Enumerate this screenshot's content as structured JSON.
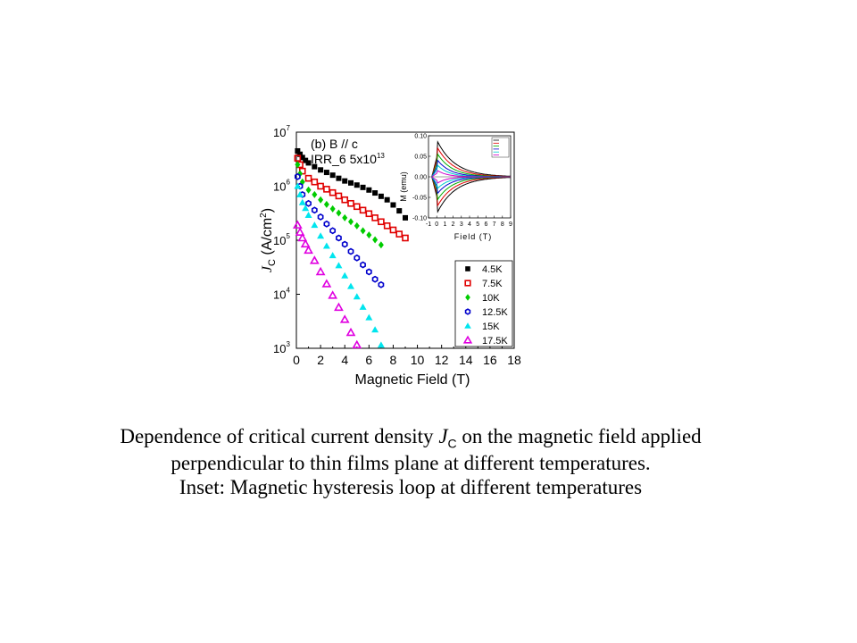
{
  "caption": {
    "line1_prefix": "Dependence of critical current density ",
    "line1_var": "J",
    "line1_var_sub": "C",
    "line1_suffix": " on the magnetic field applied",
    "line2": "perpendicular to thin films plane at different temperatures.",
    "line3": "Inset: Magnetic hysteresis loop at different temperatures"
  },
  "chart_data": [
    {
      "type": "scatter",
      "annotation_line1": "(b)  B // c",
      "annotation_line2_base": "IRR_6 5x10",
      "annotation_line2_exp": "13",
      "xlabel": "Magnetic Field (T)",
      "ylabel_var": "J",
      "ylabel_sub": "C",
      "ylabel_unit": " (A/cm",
      "ylabel_unit_exp": "2",
      "ylabel_close": ")",
      "x_ticks": [
        "0",
        "2",
        "4",
        "6",
        "8",
        "10",
        "12",
        "14",
        "16",
        "18"
      ],
      "y_tick_base": "10",
      "y_tick_exponents": [
        "3",
        "4",
        "5",
        "6",
        "7"
      ],
      "xlim": [
        0,
        18
      ],
      "ylim": [
        1000,
        10000000
      ],
      "y_scale": "log",
      "legend_position": "bottom-right",
      "series": [
        {
          "name": "4.5K",
          "marker": "square",
          "color": "#000000",
          "x": [
            0.1,
            0.3,
            0.5,
            0.75,
            1,
            1.5,
            2,
            2.5,
            3,
            3.5,
            4,
            4.5,
            5,
            5.5,
            6,
            6.5,
            7,
            7.5,
            8,
            8.5,
            9
          ],
          "y": [
            4500000,
            3900000,
            3400000,
            3000000,
            2700000,
            2300000,
            2000000,
            1800000,
            1600000,
            1400000,
            1250000,
            1150000,
            1050000,
            950000,
            850000,
            750000,
            650000,
            560000,
            450000,
            350000,
            260000
          ]
        },
        {
          "name": "7.5K",
          "marker": "square-open",
          "color": "#e00000",
          "x": [
            0.1,
            0.3,
            0.5,
            1,
            1.5,
            2,
            2.5,
            3,
            3.5,
            4,
            4.5,
            5,
            5.5,
            6,
            6.5,
            7,
            7.5,
            8,
            8.5,
            9
          ],
          "y": [
            3300000,
            2500000,
            1900000,
            1400000,
            1200000,
            1000000,
            880000,
            760000,
            660000,
            560000,
            480000,
            420000,
            360000,
            310000,
            260000,
            220000,
            185000,
            155000,
            130000,
            110000
          ]
        },
        {
          "name": "10K",
          "marker": "diamond",
          "color": "#00cc00",
          "x": [
            0.1,
            0.3,
            0.5,
            1,
            1.5,
            2,
            2.5,
            3,
            3.5,
            4,
            4.5,
            5,
            5.5,
            6,
            6.5,
            7
          ],
          "y": [
            2500000,
            1700000,
            1200000,
            850000,
            700000,
            560000,
            460000,
            380000,
            320000,
            260000,
            220000,
            185000,
            150000,
            125000,
            102000,
            82000
          ]
        },
        {
          "name": "12.5K",
          "marker": "hexagon-open",
          "color": "#0000cc",
          "x": [
            0.1,
            0.3,
            0.5,
            1,
            1.5,
            2,
            2.5,
            3,
            3.5,
            4,
            4.5,
            5,
            5.5,
            6,
            6.5,
            7
          ],
          "y": [
            1500000,
            1000000,
            700000,
            480000,
            360000,
            270000,
            200000,
            150000,
            110000,
            84000,
            62000,
            47000,
            35000,
            26000,
            19000,
            15000
          ]
        },
        {
          "name": "15K",
          "marker": "triangle",
          "color": "#00e5ee",
          "x": [
            0.1,
            0.3,
            0.5,
            0.75,
            1,
            1.5,
            2,
            2.5,
            3,
            3.5,
            4,
            4.5,
            5,
            5.5,
            6,
            6.5,
            7
          ],
          "y": [
            1000000,
            700000,
            500000,
            390000,
            290000,
            190000,
            120000,
            78000,
            52000,
            34000,
            22000,
            14000,
            9000,
            5800,
            3700,
            2200,
            1150
          ]
        },
        {
          "name": "17.5K",
          "marker": "triangle-open",
          "color": "#e000e0",
          "x": [
            0.1,
            0.3,
            0.5,
            0.75,
            1,
            1.5,
            2,
            2.5,
            3,
            3.5,
            4,
            4.5,
            5
          ],
          "y": [
            190000,
            140000,
            110000,
            85000,
            65000,
            42000,
            26000,
            15500,
            9500,
            5700,
            3400,
            1950,
            1150
          ]
        }
      ]
    },
    {
      "type": "line",
      "xlabel": "Field (T)",
      "ylabel": "M (emu)",
      "x_ticks": [
        "-1",
        "0",
        "1",
        "2",
        "3",
        "4",
        "5",
        "6",
        "7",
        "8",
        "9"
      ],
      "y_ticks": [
        "-0.10",
        "-0.05",
        "0.00",
        "0.05",
        "0.10"
      ],
      "xlim": [
        -1,
        9
      ],
      "ylim": [
        -0.1,
        0.1
      ],
      "legend_position": "top-right",
      "series": [
        {
          "peak": 0.085,
          "decay": 2.2,
          "color": "#000000"
        },
        {
          "peak": 0.07,
          "decay": 2.0,
          "color": "#e00000"
        },
        {
          "peak": 0.055,
          "decay": 1.8,
          "color": "#00aa00"
        },
        {
          "peak": 0.04,
          "decay": 1.6,
          "color": "#0000cc"
        },
        {
          "peak": 0.028,
          "decay": 1.4,
          "color": "#00cccc"
        },
        {
          "peak": 0.015,
          "decay": 1.2,
          "color": "#cc00cc"
        }
      ]
    }
  ]
}
